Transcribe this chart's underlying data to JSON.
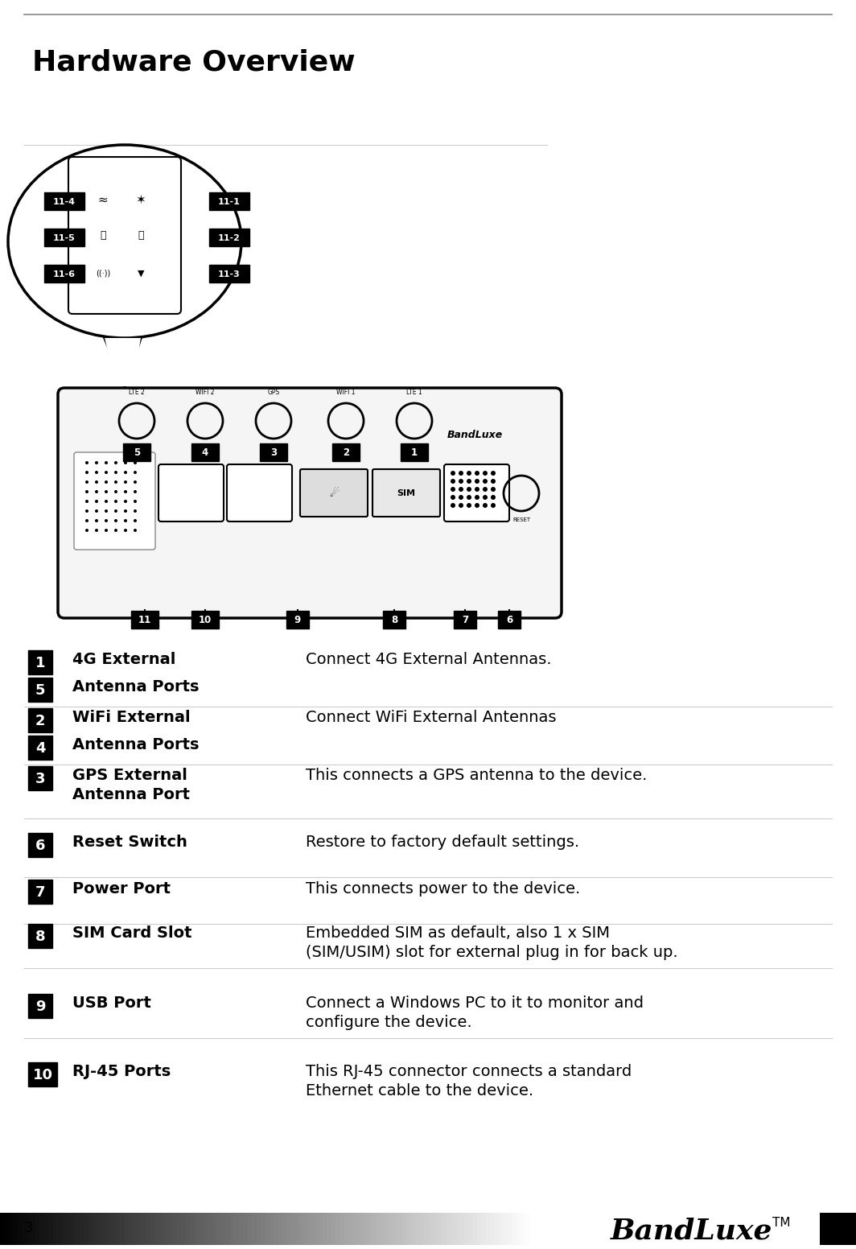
{
  "title": "Hardware Overview",
  "bg_color": "#ffffff",
  "title_color": "#000000",
  "title_fontsize": 26,
  "items": [
    {
      "numbers": [
        "1",
        "5"
      ],
      "label_line1": "4G External",
      "label_line2": "Antenna Ports",
      "description": "Connect 4G External Antennas.",
      "desc_line2": ""
    },
    {
      "numbers": [
        "2",
        "4"
      ],
      "label_line1": "WiFi External",
      "label_line2": "Antenna Ports",
      "description": "Connect WiFi External Antennas",
      "desc_line2": ""
    },
    {
      "numbers": [
        "3"
      ],
      "label_line1": "GPS External",
      "label_line2": "Antenna Port",
      "description": "This connects a GPS antenna to the device.",
      "desc_line2": ""
    },
    {
      "numbers": [
        "6"
      ],
      "label_line1": "Reset Switch",
      "label_line2": "",
      "description": "Restore to factory default settings.",
      "desc_line2": ""
    },
    {
      "numbers": [
        "7"
      ],
      "label_line1": "Power Port",
      "label_line2": "",
      "description": "This connects power to the device.",
      "desc_line2": ""
    },
    {
      "numbers": [
        "8"
      ],
      "label_line1": "SIM Card Slot",
      "label_line2": "",
      "description": "Embedded SIM as default, also 1 x SIM",
      "desc_line2": "(SIM/USIM) slot for external plug in for back up."
    },
    {
      "numbers": [
        "9"
      ],
      "label_line1": "USB Port",
      "label_line2": "",
      "description": "Connect a Windows PC to it to monitor and",
      "desc_line2": "configure the device."
    },
    {
      "numbers": [
        "10"
      ],
      "label_line1": "RJ-45 Ports",
      "label_line2": "",
      "description": "This RJ-45 connector connects a standard",
      "desc_line2": "Ethernet cable to the device."
    }
  ],
  "page_number": "3"
}
